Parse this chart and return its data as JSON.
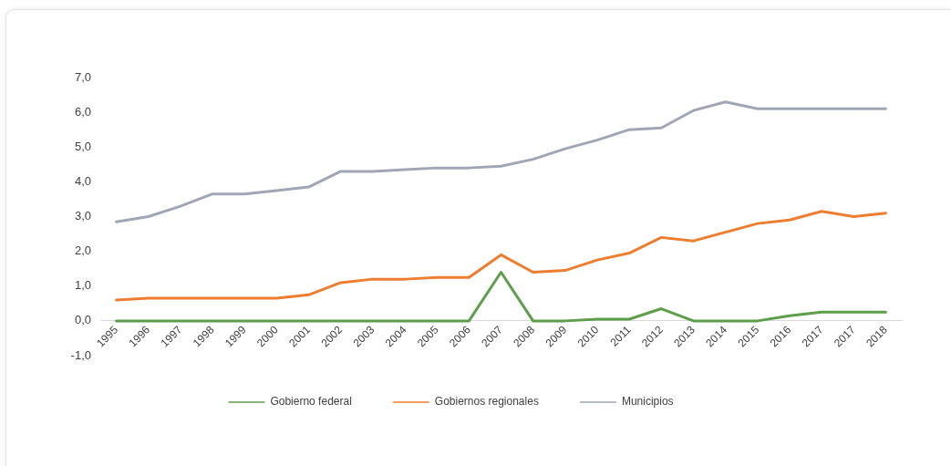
{
  "chart_data": {
    "type": "line",
    "categories": [
      "1995",
      "1996",
      "1997",
      "1998",
      "1999",
      "2000",
      "2001",
      "2002",
      "2003",
      "2004",
      "2005",
      "2006",
      "2007",
      "2008",
      "2009",
      "2010",
      "2011",
      "2012",
      "2013",
      "2014",
      "2015",
      "2016",
      "2017",
      "2017",
      "2018"
    ],
    "series": [
      {
        "name": "Gobierno federal",
        "color": "#5c9e4a",
        "values": [
          0,
          0,
          0,
          0,
          0,
          0,
          0,
          0,
          0,
          0,
          0,
          0,
          1.4,
          0,
          0,
          0.05,
          0.05,
          0.35,
          0,
          0,
          0,
          0.15,
          0.25,
          0.25,
          0.25
        ]
      },
      {
        "name": "Gobiernos regionales",
        "color": "#ed7d31",
        "values": [
          0.6,
          0.65,
          0.65,
          0.65,
          0.65,
          0.65,
          0.75,
          1.1,
          1.2,
          1.2,
          1.25,
          1.25,
          1.9,
          1.4,
          1.45,
          1.75,
          1.95,
          2.4,
          2.3,
          2.55,
          2.8,
          2.9,
          3.15,
          3.0,
          3.1
        ]
      },
      {
        "name": "Municipios",
        "color": "#a0a6b4",
        "values": [
          2.85,
          3.0,
          3.3,
          3.65,
          3.65,
          3.75,
          3.85,
          4.3,
          4.3,
          4.35,
          4.4,
          4.4,
          4.45,
          4.65,
          4.95,
          5.2,
          5.5,
          5.55,
          6.05,
          6.3,
          6.1,
          6.1,
          6.1,
          6.1,
          6.1
        ]
      }
    ],
    "ylim": [
      -1,
      7
    ],
    "yticks": [
      {
        "value": -1,
        "label": "-1,0"
      },
      {
        "value": 0,
        "label": "0,0"
      },
      {
        "value": 1,
        "label": "1,0"
      },
      {
        "value": 2,
        "label": "2,0"
      },
      {
        "value": 3,
        "label": "3,0"
      },
      {
        "value": 4,
        "label": "4,0"
      },
      {
        "value": 5,
        "label": "5,0"
      },
      {
        "value": 6,
        "label": "6,0"
      },
      {
        "value": 7,
        "label": "7,0"
      }
    ],
    "legend": "bottom",
    "grid": false,
    "marker": "none",
    "line_style": "solid"
  }
}
